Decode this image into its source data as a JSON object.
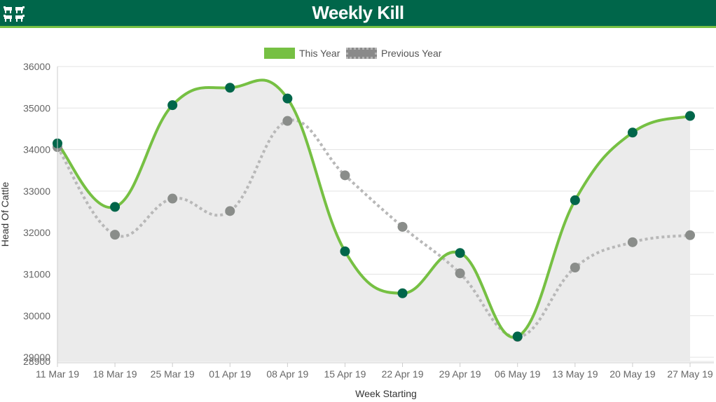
{
  "header": {
    "title": "Weekly Kill",
    "logo_icon": "cattle-icon"
  },
  "colors": {
    "header_bg": "#00664a",
    "this_year_line": "#76c043",
    "this_year_point": "#00664a",
    "previous_year_line": "#b8b8b8",
    "previous_year_point": "#8a8d8a",
    "area_fill": "#ebebeb"
  },
  "chart_data": {
    "type": "line",
    "xlabel": "Week Starting",
    "ylabel": "Head Of Cattle",
    "categories": [
      "11 Mar 19",
      "18 Mar 19",
      "25 Mar 19",
      "01 Apr 19",
      "08 Apr 19",
      "15 Apr 19",
      "22 Apr 19",
      "29 Apr 19",
      "06 May 19",
      "13 May 19",
      "20 May 19",
      "27 May 19"
    ],
    "ylim": [
      28900,
      36000
    ],
    "yticks": [
      "28900",
      "29000",
      "30000",
      "31000",
      "32000",
      "33000",
      "34000",
      "35000",
      "36000"
    ],
    "ytick_values": [
      28900,
      29000,
      30000,
      31000,
      32000,
      33000,
      34000,
      35000,
      36000
    ],
    "grid": true,
    "legend_position": "top-center",
    "series": [
      {
        "name": "This Year",
        "style": "solid",
        "filled": true,
        "values": [
          34150,
          32620,
          35070,
          35490,
          35230,
          31550,
          30540,
          31510,
          29500,
          32780,
          34410,
          34810
        ]
      },
      {
        "name": "Previous Year",
        "style": "dotted",
        "filled": false,
        "values": [
          34060,
          31950,
          32820,
          32520,
          34690,
          33380,
          32140,
          31020,
          29490,
          31160,
          31770,
          31940
        ]
      }
    ]
  }
}
